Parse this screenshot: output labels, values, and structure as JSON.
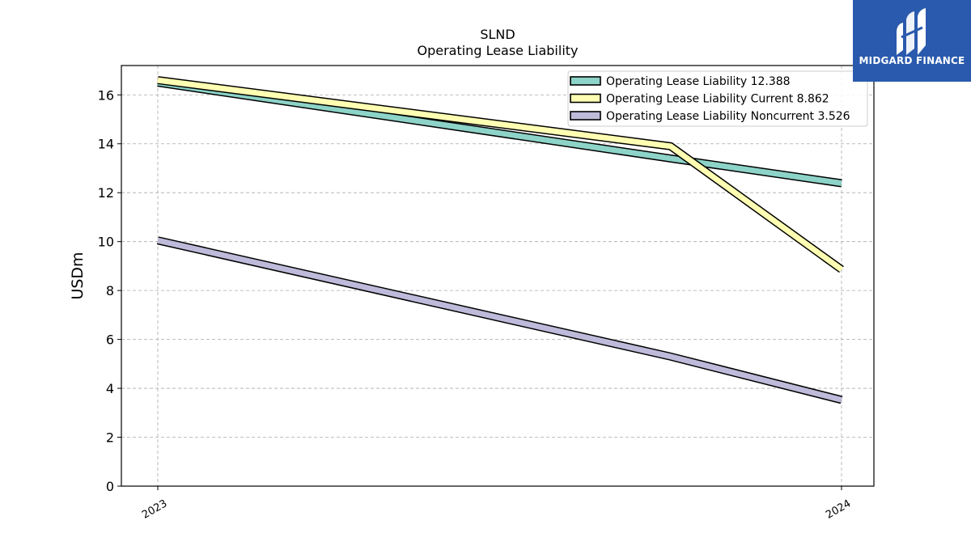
{
  "chart_data": {
    "type": "line",
    "title": "SLND",
    "subtitle": "Operating Lease Liability",
    "ylabel": "USDm",
    "xlabel": "",
    "x": [
      "2023-03",
      "2023-06",
      "2023-09",
      "2023-12",
      "2024-03"
    ],
    "x_tick_labels": [
      "2023",
      "2024"
    ],
    "x_ticks_at": [
      "2023-03",
      "2024-03"
    ],
    "ylim": [
      0,
      17.2
    ],
    "y_ticks": [
      0,
      2,
      4,
      6,
      8,
      10,
      12,
      14,
      16
    ],
    "grid": true,
    "legend_position": "top-right",
    "series": [
      {
        "name": "Operating Lease Liability",
        "legend_value": "12.388",
        "color": "#8dd3c7",
        "values": [
          16.5,
          null,
          null,
          13.4,
          12.388
        ]
      },
      {
        "name": "Operating Lease Liability Current",
        "legend_value": "8.862",
        "color": "#ffffb3",
        "values": [
          16.6,
          null,
          null,
          13.9,
          8.862
        ]
      },
      {
        "name": "Operating Lease Liability Noncurrent",
        "legend_value": "3.526",
        "color": "#bebada",
        "values": [
          10.05,
          null,
          null,
          5.3,
          3.526
        ]
      }
    ]
  },
  "logo": {
    "text": "MIDGARD FINANCE"
  }
}
